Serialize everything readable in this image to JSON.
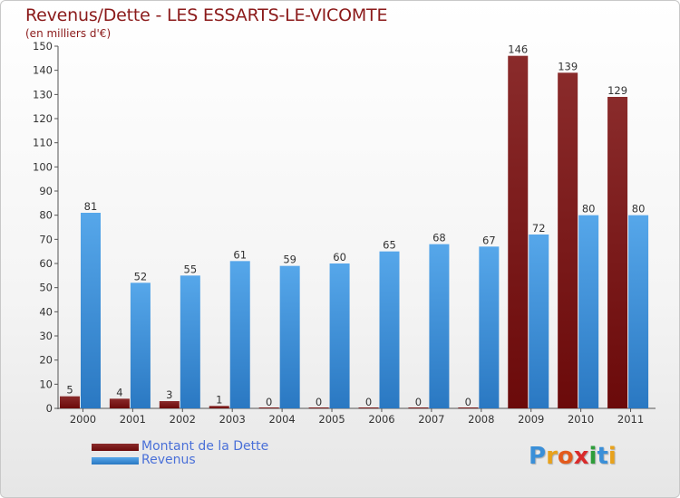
{
  "title": "Revenus/Dette - LES ESSARTS-LE-VICOMTE",
  "subtitle": "(en milliers d'€)",
  "logo": "Proxiti",
  "colors": {
    "dette": "#6b0a0a",
    "revenus": "#3c8fd6",
    "title": "#8b1a1a",
    "legend_text": "#4a70d8"
  },
  "chart_data": {
    "type": "bar",
    "categories": [
      "2000",
      "2001",
      "2002",
      "2003",
      "2004",
      "2005",
      "2006",
      "2007",
      "2008",
      "2009",
      "2010",
      "2011"
    ],
    "series": [
      {
        "name": "Montant de la Dette",
        "values": [
          5,
          4,
          3,
          1,
          0,
          0,
          0,
          0,
          0,
          146,
          139,
          129
        ]
      },
      {
        "name": "Revenus",
        "values": [
          81,
          52,
          55,
          61,
          59,
          60,
          65,
          68,
          67,
          72,
          80,
          80
        ]
      }
    ],
    "ylim": [
      0,
      150
    ],
    "yticks": [
      0,
      10,
      20,
      30,
      40,
      50,
      60,
      70,
      80,
      90,
      100,
      110,
      120,
      130,
      140,
      150
    ],
    "grid": false,
    "legend": "bottom-left"
  }
}
